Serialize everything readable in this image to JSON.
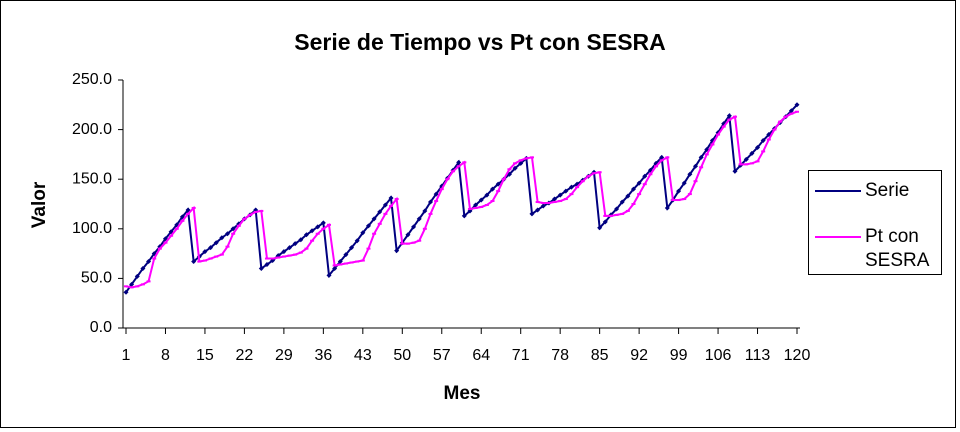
{
  "chart_data": {
    "type": "line",
    "title": "Serie de Tiempo vs Pt con SESRA",
    "x_label": "Mes",
    "y_label": "Valor",
    "x": [
      1,
      2,
      3,
      4,
      5,
      6,
      7,
      8,
      9,
      10,
      11,
      12,
      13,
      14,
      15,
      16,
      17,
      18,
      19,
      20,
      21,
      22,
      23,
      24,
      25,
      26,
      27,
      28,
      29,
      30,
      31,
      32,
      33,
      34,
      35,
      36,
      37,
      38,
      39,
      40,
      41,
      42,
      43,
      44,
      45,
      46,
      47,
      48,
      49,
      50,
      51,
      52,
      53,
      54,
      55,
      56,
      57,
      58,
      59,
      60,
      61,
      62,
      63,
      64,
      65,
      66,
      67,
      68,
      69,
      70,
      71,
      72,
      73,
      74,
      75,
      76,
      77,
      78,
      79,
      80,
      81,
      82,
      83,
      84,
      85,
      86,
      87,
      88,
      89,
      90,
      91,
      92,
      93,
      94,
      95,
      96,
      97,
      98,
      99,
      100,
      101,
      102,
      103,
      104,
      105,
      106,
      107,
      108,
      109,
      110,
      111,
      112,
      113,
      114,
      115,
      116,
      117,
      118,
      119,
      120
    ],
    "xlim": [
      1,
      120
    ],
    "xticks": [
      1,
      8,
      15,
      22,
      29,
      36,
      43,
      50,
      57,
      64,
      71,
      78,
      85,
      92,
      99,
      106,
      113,
      120
    ],
    "ylim": [
      0,
      250
    ],
    "yticks": [
      {
        "value": 0,
        "label": "0.0"
      },
      {
        "value": 50,
        "label": "50.0"
      },
      {
        "value": 100,
        "label": "100.0"
      },
      {
        "value": 150,
        "label": "150.0"
      },
      {
        "value": 200,
        "label": "200.0"
      },
      {
        "value": 250,
        "label": "250.0"
      }
    ],
    "legend": "right",
    "series": [
      {
        "name": "Serie",
        "color": "#000080",
        "marker": "diamond",
        "values": [
          36,
          44,
          52,
          60,
          67,
          75,
          82,
          90,
          97,
          104,
          112,
          119,
          67,
          72,
          77,
          81,
          86,
          91,
          95,
          100,
          105,
          110,
          114,
          119,
          60,
          64,
          68,
          73,
          77,
          81,
          85,
          89,
          94,
          98,
          102,
          106,
          53,
          60,
          67,
          74,
          81,
          88,
          96,
          103,
          110,
          117,
          124,
          131,
          78,
          86,
          94,
          102,
          110,
          118,
          127,
          135,
          143,
          151,
          159,
          167,
          113,
          118,
          124,
          129,
          134,
          140,
          145,
          150,
          155,
          161,
          166,
          171,
          115,
          119,
          123,
          126,
          130,
          134,
          138,
          142,
          145,
          149,
          153,
          157,
          101,
          107,
          114,
          120,
          127,
          133,
          140,
          146,
          153,
          159,
          166,
          172,
          121,
          129,
          138,
          146,
          155,
          163,
          172,
          180,
          189,
          197,
          206,
          214,
          158,
          164,
          170,
          176,
          182,
          189,
          195,
          201,
          207,
          213,
          219,
          225
        ]
      },
      {
        "name": "Pt con SESRA",
        "color": "#ff00ff",
        "marker": "dash",
        "values": [
          42,
          41,
          42,
          44,
          47,
          70,
          80,
          86,
          93,
          100,
          108,
          115,
          121,
          67,
          68,
          70,
          72,
          74,
          82,
          95,
          103,
          110,
          114,
          117,
          118,
          70,
          70,
          71,
          72,
          73,
          74,
          76,
          80,
          88,
          95,
          100,
          104,
          63,
          64,
          65,
          66,
          67,
          68,
          80,
          95,
          105,
          115,
          123,
          130,
          85,
          85,
          86,
          88,
          100,
          115,
          128,
          140,
          150,
          158,
          163,
          167,
          120,
          121,
          122,
          124,
          128,
          138,
          150,
          160,
          166,
          169,
          171,
          172,
          127,
          126,
          126,
          127,
          128,
          130,
          135,
          142,
          148,
          153,
          156,
          157,
          113,
          113,
          114,
          115,
          118,
          125,
          135,
          145,
          155,
          163,
          169,
          172,
          129,
          129,
          130,
          135,
          148,
          162,
          175,
          185,
          195,
          203,
          210,
          213,
          165,
          165,
          166,
          168,
          178,
          190,
          200,
          208,
          213,
          216,
          218
        ]
      }
    ]
  }
}
